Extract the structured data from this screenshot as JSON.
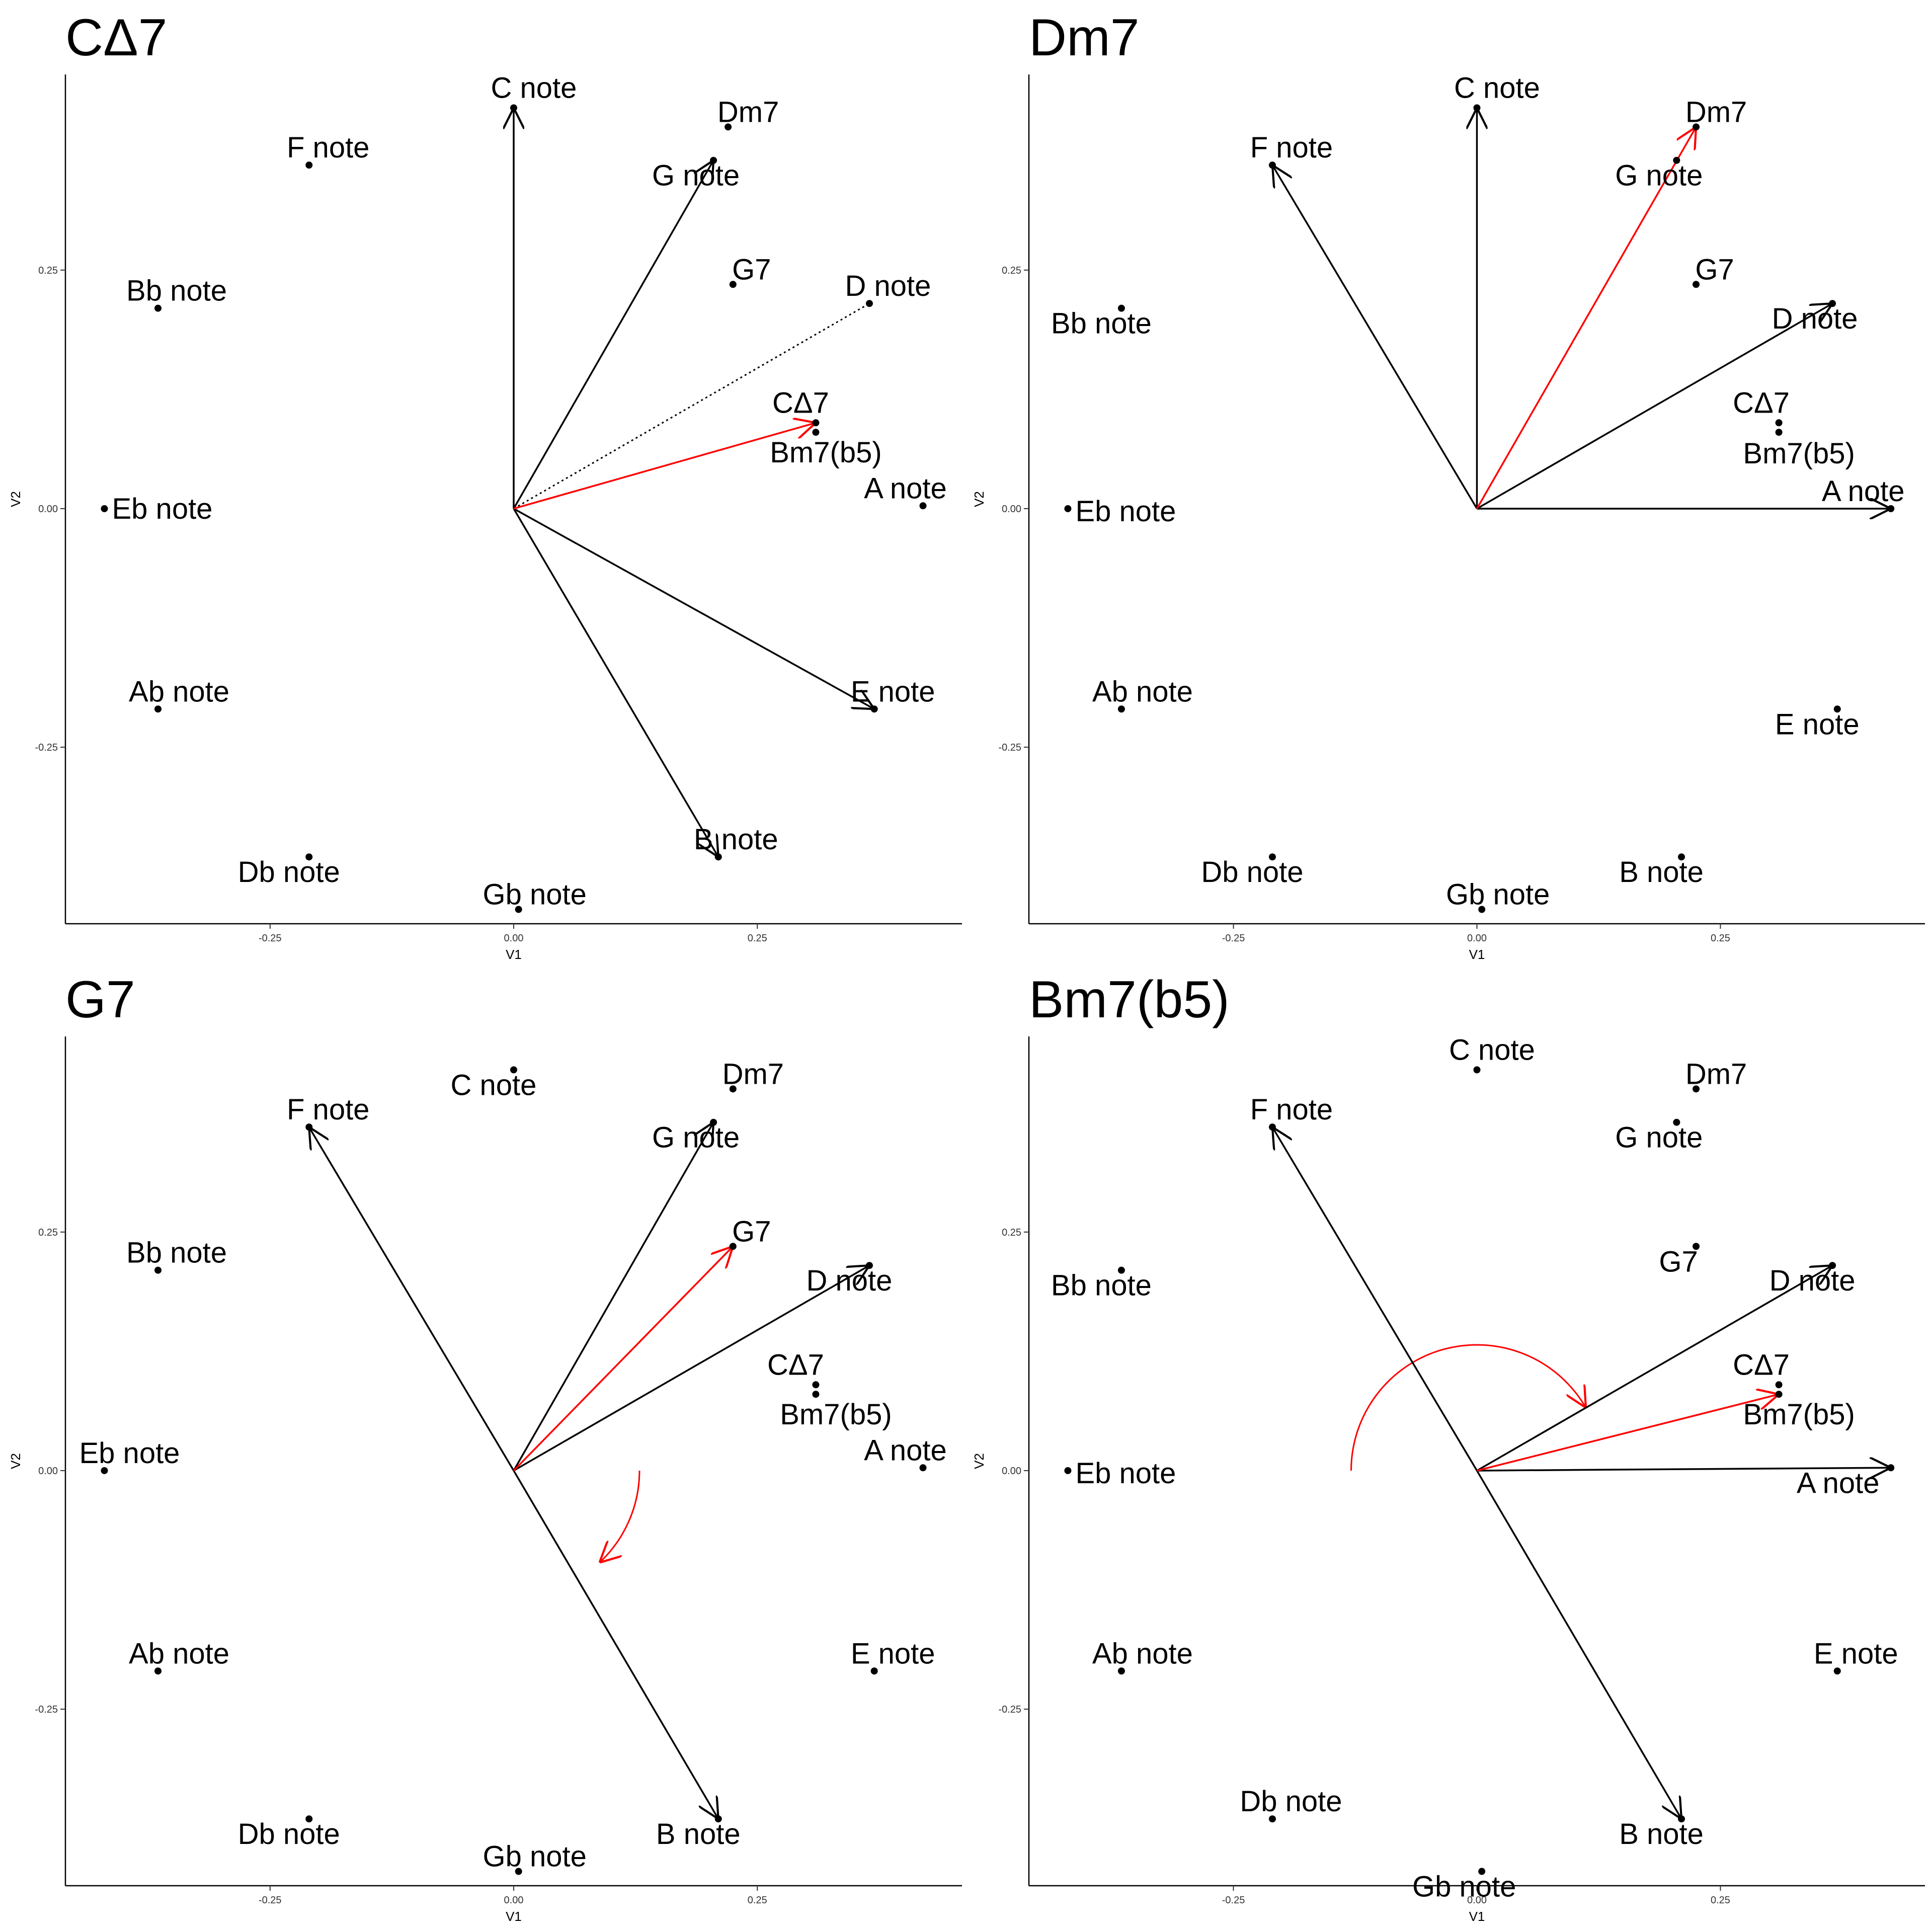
{
  "chart_data": [
    {
      "type": "scatter",
      "title": "CΔ7",
      "xlabel": "V1",
      "ylabel": "V2",
      "x_ticks": [
        "-0.25",
        "0.00",
        "0.25"
      ],
      "y_ticks": [
        "0.25",
        "0.00",
        "-0.25"
      ],
      "points": [
        {
          "label": "C note",
          "x": 0.0,
          "y": 0.42
        },
        {
          "label": "Dm7",
          "x": 0.22,
          "y": 0.4
        },
        {
          "label": "F note",
          "x": -0.21,
          "y": 0.36
        },
        {
          "label": "G note",
          "x": 0.205,
          "y": 0.365
        },
        {
          "label": "G7",
          "x": 0.225,
          "y": 0.235
        },
        {
          "label": "Bb note",
          "x": -0.365,
          "y": 0.21
        },
        {
          "label": "D note",
          "x": 0.365,
          "y": 0.215
        },
        {
          "label": "CΔ7",
          "x": 0.31,
          "y": 0.09
        },
        {
          "label": "Bm7(b5)",
          "x": 0.31,
          "y": 0.08
        },
        {
          "label": "A note",
          "x": 0.42,
          "y": 0.003
        },
        {
          "label": "Eb note",
          "x": -0.42,
          "y": 0.0
        },
        {
          "label": "Ab note",
          "x": -0.365,
          "y": -0.21
        },
        {
          "label": "E note",
          "x": 0.37,
          "y": -0.21
        },
        {
          "label": "Db note",
          "x": -0.21,
          "y": -0.365
        },
        {
          "label": "B note",
          "x": 0.21,
          "y": -0.365
        },
        {
          "label": "Gb note",
          "x": 0.005,
          "y": -0.42
        }
      ],
      "vectors": [
        {
          "to": "C note",
          "color": "#000000"
        },
        {
          "to": "G note",
          "color": "#000000"
        },
        {
          "to": "E note",
          "color": "#000000"
        },
        {
          "to": "B note",
          "color": "#000000"
        },
        {
          "to": "D note",
          "color": "#000000",
          "style": "dotted"
        },
        {
          "to": "CΔ7",
          "color": "#ff0000"
        }
      ],
      "grid": false
    },
    {
      "type": "scatter",
      "title": "Dm7",
      "xlabel": "V1",
      "ylabel": "V2",
      "x_ticks": [
        "-0.25",
        "0.00",
        "0.25"
      ],
      "y_ticks": [
        "0.25",
        "0.00",
        "-0.25"
      ],
      "points": [
        {
          "label": "C note",
          "x": 0.0,
          "y": 0.42
        },
        {
          "label": "Dm7",
          "x": 0.225,
          "y": 0.4
        },
        {
          "label": "F note",
          "x": -0.21,
          "y": 0.36
        },
        {
          "label": "G note",
          "x": 0.205,
          "y": 0.365
        },
        {
          "label": "G7",
          "x": 0.225,
          "y": 0.235
        },
        {
          "label": "Bb note",
          "x": -0.365,
          "y": 0.21
        },
        {
          "label": "D note",
          "x": 0.365,
          "y": 0.215
        },
        {
          "label": "CΔ7",
          "x": 0.31,
          "y": 0.09
        },
        {
          "label": "Bm7(b5)",
          "x": 0.31,
          "y": 0.08
        },
        {
          "label": "A note",
          "x": 0.425,
          "y": 0.0
        },
        {
          "label": "Eb note",
          "x": -0.42,
          "y": 0.0
        },
        {
          "label": "Ab note",
          "x": -0.365,
          "y": -0.21
        },
        {
          "label": "E note",
          "x": 0.37,
          "y": -0.21
        },
        {
          "label": "Db note",
          "x": -0.21,
          "y": -0.365
        },
        {
          "label": "B note",
          "x": 0.21,
          "y": -0.365
        },
        {
          "label": "Gb note",
          "x": 0.005,
          "y": -0.42
        }
      ],
      "vectors": [
        {
          "to": "C note",
          "color": "#000000"
        },
        {
          "to": "F note",
          "color": "#000000"
        },
        {
          "to": "D note",
          "color": "#000000"
        },
        {
          "to": "A note",
          "color": "#000000"
        },
        {
          "to": "Dm7",
          "color": "#ff0000"
        }
      ],
      "grid": false
    },
    {
      "type": "scatter",
      "title": "G7",
      "xlabel": "V1",
      "ylabel": "V2",
      "x_ticks": [
        "-0.25",
        "0.00",
        "0.25"
      ],
      "y_ticks": [
        "0.25",
        "0.00",
        "-0.25"
      ],
      "points": [
        {
          "label": "C note",
          "x": 0.0,
          "y": 0.42
        },
        {
          "label": "Dm7",
          "x": 0.225,
          "y": 0.4
        },
        {
          "label": "F note",
          "x": -0.21,
          "y": 0.36
        },
        {
          "label": "G note",
          "x": 0.205,
          "y": 0.365
        },
        {
          "label": "G7",
          "x": 0.225,
          "y": 0.235
        },
        {
          "label": "Bb note",
          "x": -0.365,
          "y": 0.21
        },
        {
          "label": "D note",
          "x": 0.365,
          "y": 0.215
        },
        {
          "label": "CΔ7",
          "x": 0.31,
          "y": 0.09
        },
        {
          "label": "Bm7(b5)",
          "x": 0.31,
          "y": 0.08
        },
        {
          "label": "A note",
          "x": 0.42,
          "y": 0.003
        },
        {
          "label": "Eb note",
          "x": -0.42,
          "y": 0.0
        },
        {
          "label": "Ab note",
          "x": -0.365,
          "y": -0.21
        },
        {
          "label": "E note",
          "x": 0.37,
          "y": -0.21
        },
        {
          "label": "Db note",
          "x": -0.21,
          "y": -0.365
        },
        {
          "label": "B note",
          "x": 0.21,
          "y": -0.365
        },
        {
          "label": "Gb note",
          "x": 0.005,
          "y": -0.42
        }
      ],
      "vectors": [
        {
          "to": "F note",
          "color": "#000000"
        },
        {
          "to": "G note",
          "color": "#000000"
        },
        {
          "to": "D note",
          "color": "#000000"
        },
        {
          "to": "B note",
          "color": "#000000"
        },
        {
          "to": "G7",
          "color": "#ff0000"
        }
      ],
      "arcs": [
        {
          "from_angle_deg": 0,
          "to_angle_deg": 313,
          "color": "#ff0000",
          "clockwise": true
        }
      ],
      "grid": false
    },
    {
      "type": "scatter",
      "title": "Bm7(b5)",
      "xlabel": "V1",
      "ylabel": "V2",
      "x_ticks": [
        "-0.25",
        "0.00",
        "0.25"
      ],
      "y_ticks": [
        "0.25",
        "0.00",
        "-0.25"
      ],
      "points": [
        {
          "label": "C note",
          "x": 0.0,
          "y": 0.42
        },
        {
          "label": "Dm7",
          "x": 0.225,
          "y": 0.4
        },
        {
          "label": "F note",
          "x": -0.21,
          "y": 0.36
        },
        {
          "label": "G note",
          "x": 0.205,
          "y": 0.365
        },
        {
          "label": "G7",
          "x": 0.225,
          "y": 0.235
        },
        {
          "label": "Bb note",
          "x": -0.365,
          "y": 0.21
        },
        {
          "label": "D note",
          "x": 0.365,
          "y": 0.215
        },
        {
          "label": "CΔ7",
          "x": 0.31,
          "y": 0.09
        },
        {
          "label": "Bm7(b5)",
          "x": 0.31,
          "y": 0.08
        },
        {
          "label": "A note",
          "x": 0.425,
          "y": 0.003
        },
        {
          "label": "Eb note",
          "x": -0.42,
          "y": 0.0
        },
        {
          "label": "Ab note",
          "x": -0.365,
          "y": -0.21
        },
        {
          "label": "E note",
          "x": 0.37,
          "y": -0.21
        },
        {
          "label": "Db note",
          "x": -0.21,
          "y": -0.365
        },
        {
          "label": "B note",
          "x": 0.21,
          "y": -0.365
        },
        {
          "label": "Gb note",
          "x": 0.005,
          "y": -0.42
        }
      ],
      "vectors": [
        {
          "to": "F note",
          "color": "#000000"
        },
        {
          "to": "D note",
          "color": "#000000"
        },
        {
          "to": "A note",
          "color": "#000000"
        },
        {
          "to": "B note",
          "color": "#000000"
        },
        {
          "to": "Bm7(b5)",
          "color": "#ff0000"
        }
      ],
      "arcs": [
        {
          "from_angle_deg": 180,
          "to_angle_deg": 30,
          "color": "#ff0000",
          "clockwise": true
        }
      ],
      "grid": false
    }
  ]
}
